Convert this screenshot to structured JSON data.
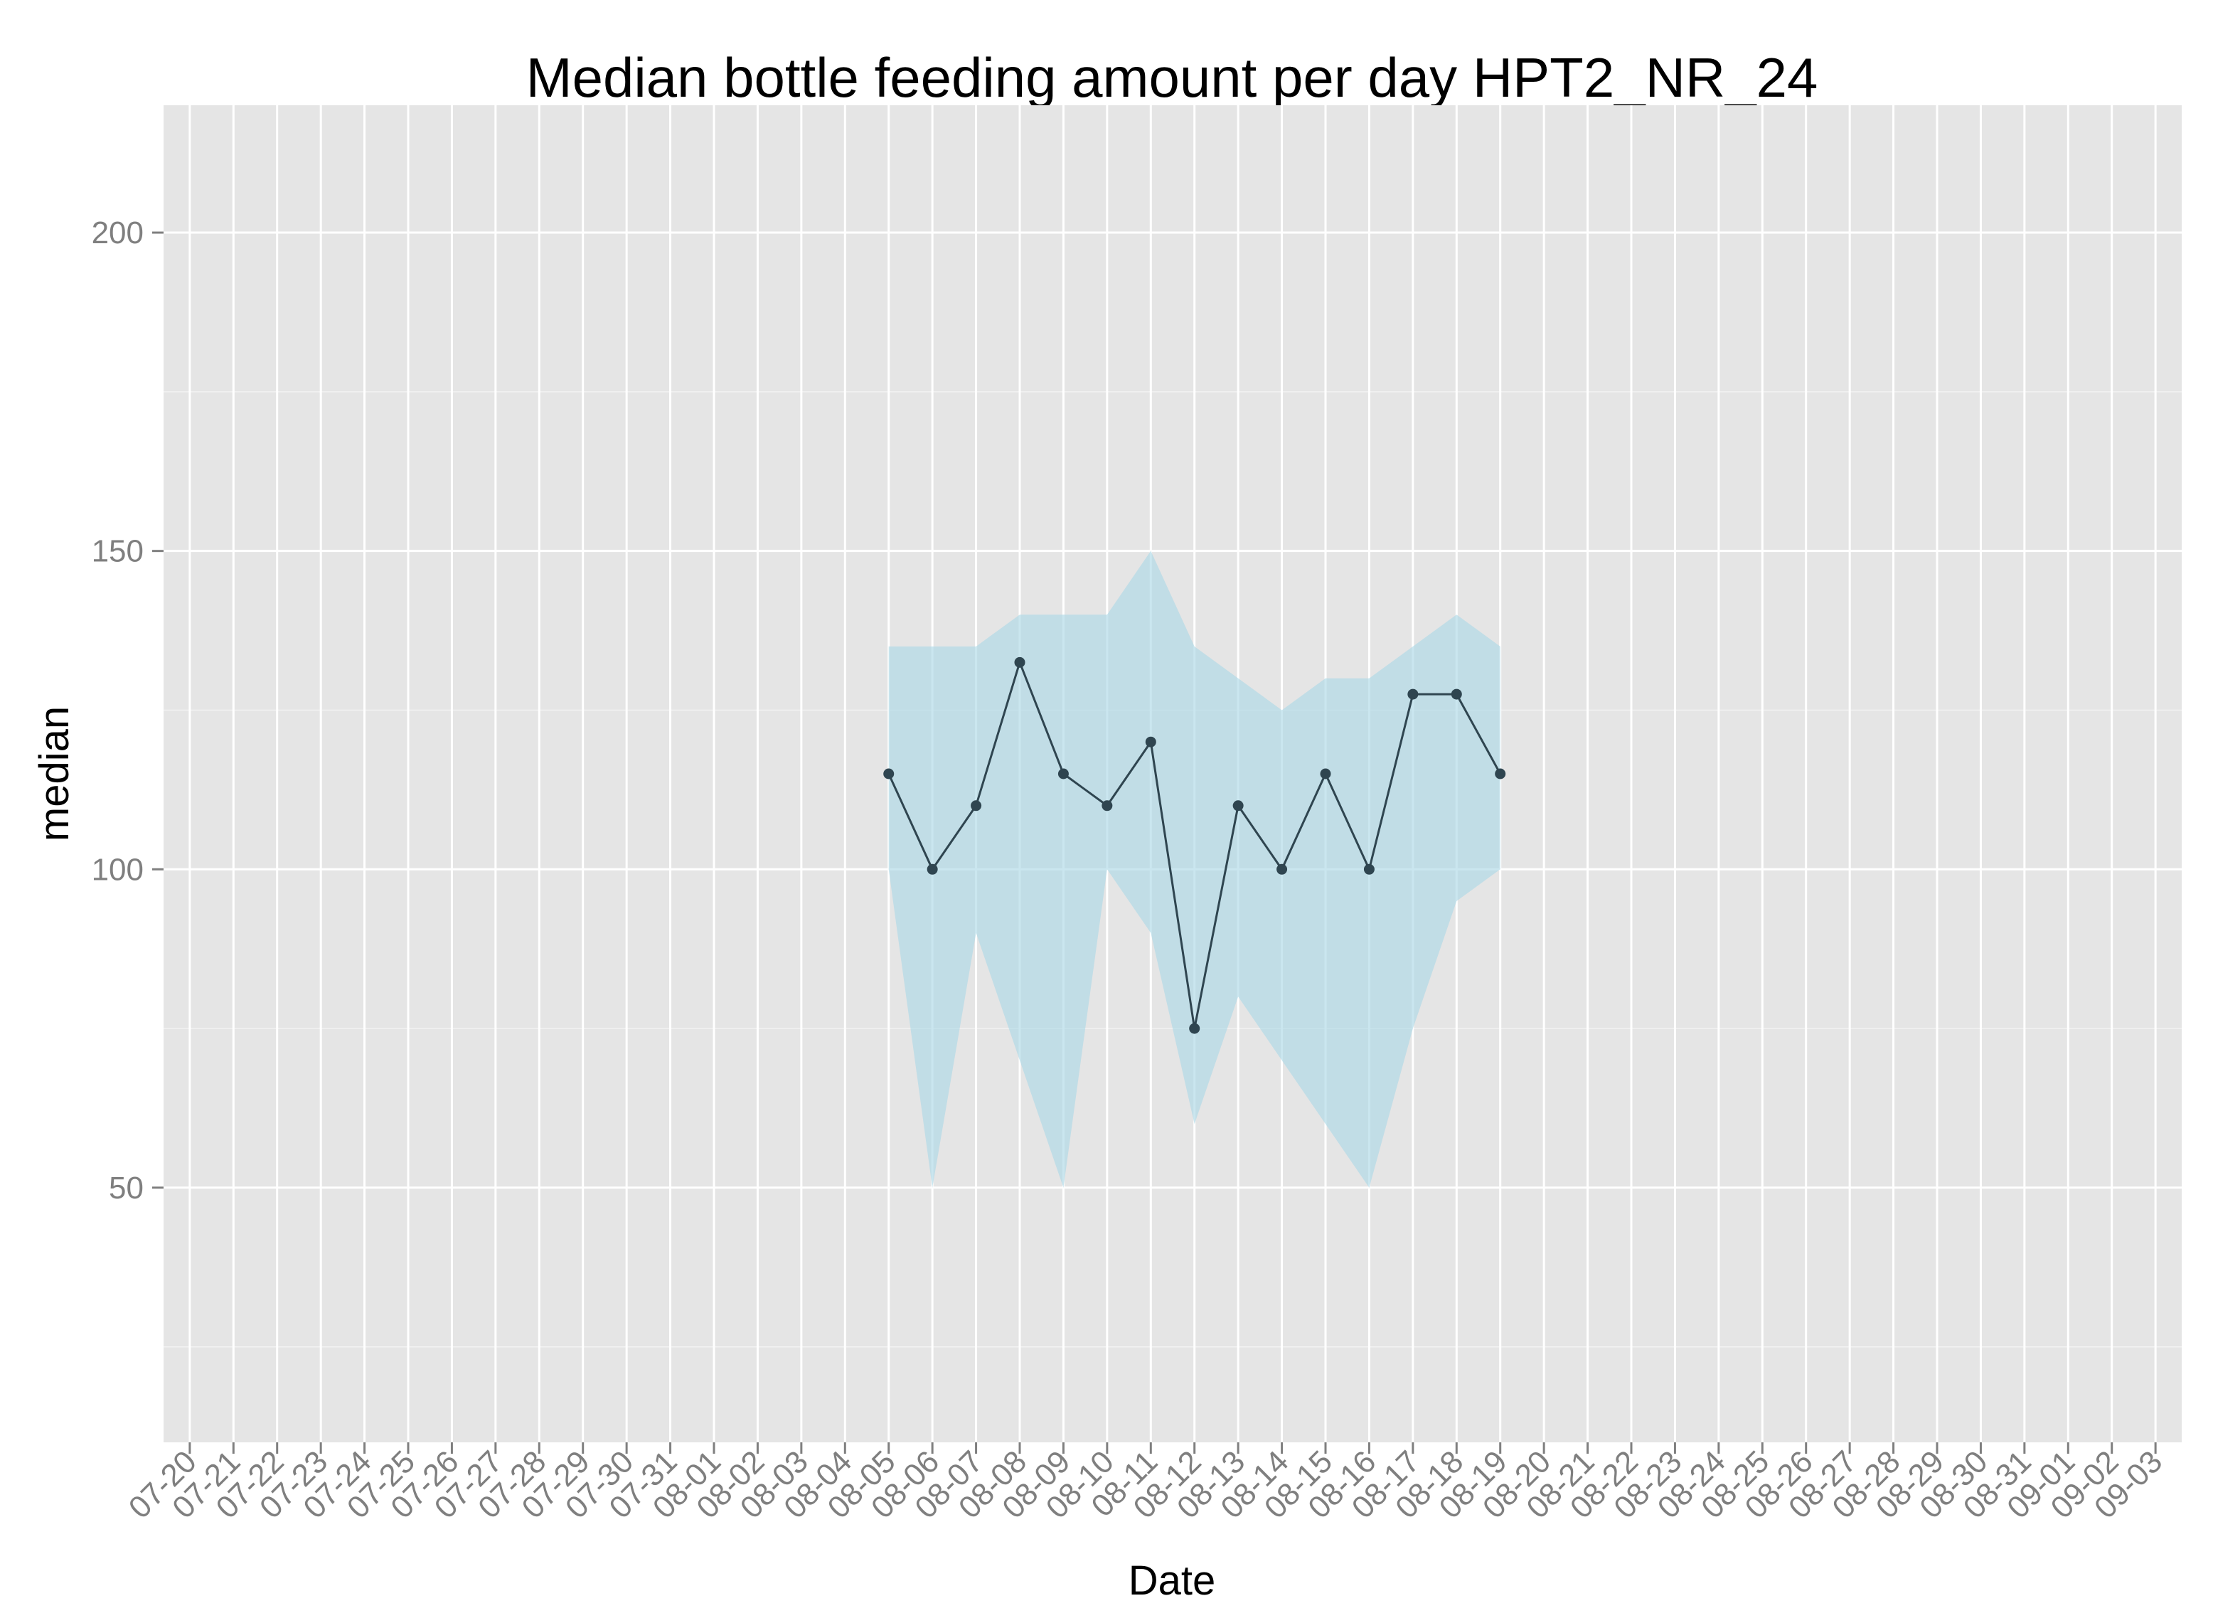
{
  "chart_data": {
    "type": "line",
    "title": "Median bottle feeding amount per day HPT2_NR_24",
    "xlabel": "Date",
    "ylabel": "median",
    "ylim": [
      10,
      220
    ],
    "yticks": [
      50,
      100,
      150,
      200
    ],
    "x_categories": [
      "07-20",
      "07-21",
      "07-22",
      "07-23",
      "07-24",
      "07-25",
      "07-26",
      "07-27",
      "07-28",
      "07-29",
      "07-30",
      "07-31",
      "08-01",
      "08-02",
      "08-03",
      "08-04",
      "08-05",
      "08-06",
      "08-07",
      "08-08",
      "08-09",
      "08-10",
      "08-11",
      "08-12",
      "08-13",
      "08-14",
      "08-15",
      "08-16",
      "08-17",
      "08-18",
      "08-19",
      "08-20",
      "08-21",
      "08-22",
      "08-23",
      "08-24",
      "08-25",
      "08-26",
      "08-27",
      "08-28",
      "08-29",
      "08-30",
      "08-31",
      "09-01",
      "09-02",
      "09-03"
    ],
    "grid": true,
    "series": [
      {
        "x": [
          "08-05",
          "08-06",
          "08-07",
          "08-08",
          "08-09",
          "08-10",
          "08-11",
          "08-12",
          "08-13",
          "08-14",
          "08-15",
          "08-16",
          "08-17",
          "08-18",
          "08-19"
        ],
        "median": [
          115,
          100,
          110,
          132.5,
          115,
          110,
          120,
          75,
          110,
          100,
          115,
          100,
          127.5,
          127.5,
          115
        ],
        "upper": [
          135,
          135,
          135,
          140,
          140,
          140,
          150,
          135,
          130,
          125,
          130,
          130,
          135,
          140,
          135
        ],
        "lower": [
          100,
          50,
          90,
          70,
          50,
          100,
          90,
          60,
          80,
          70,
          60,
          50,
          75,
          95,
          100
        ],
        "line_color": "#2f4550",
        "ribbon_color": "#add8e6"
      }
    ],
    "colors": {
      "panel_background": "#e5e5e5",
      "grid_major": "#ffffff",
      "grid_minor": "#f2f2f2"
    }
  }
}
